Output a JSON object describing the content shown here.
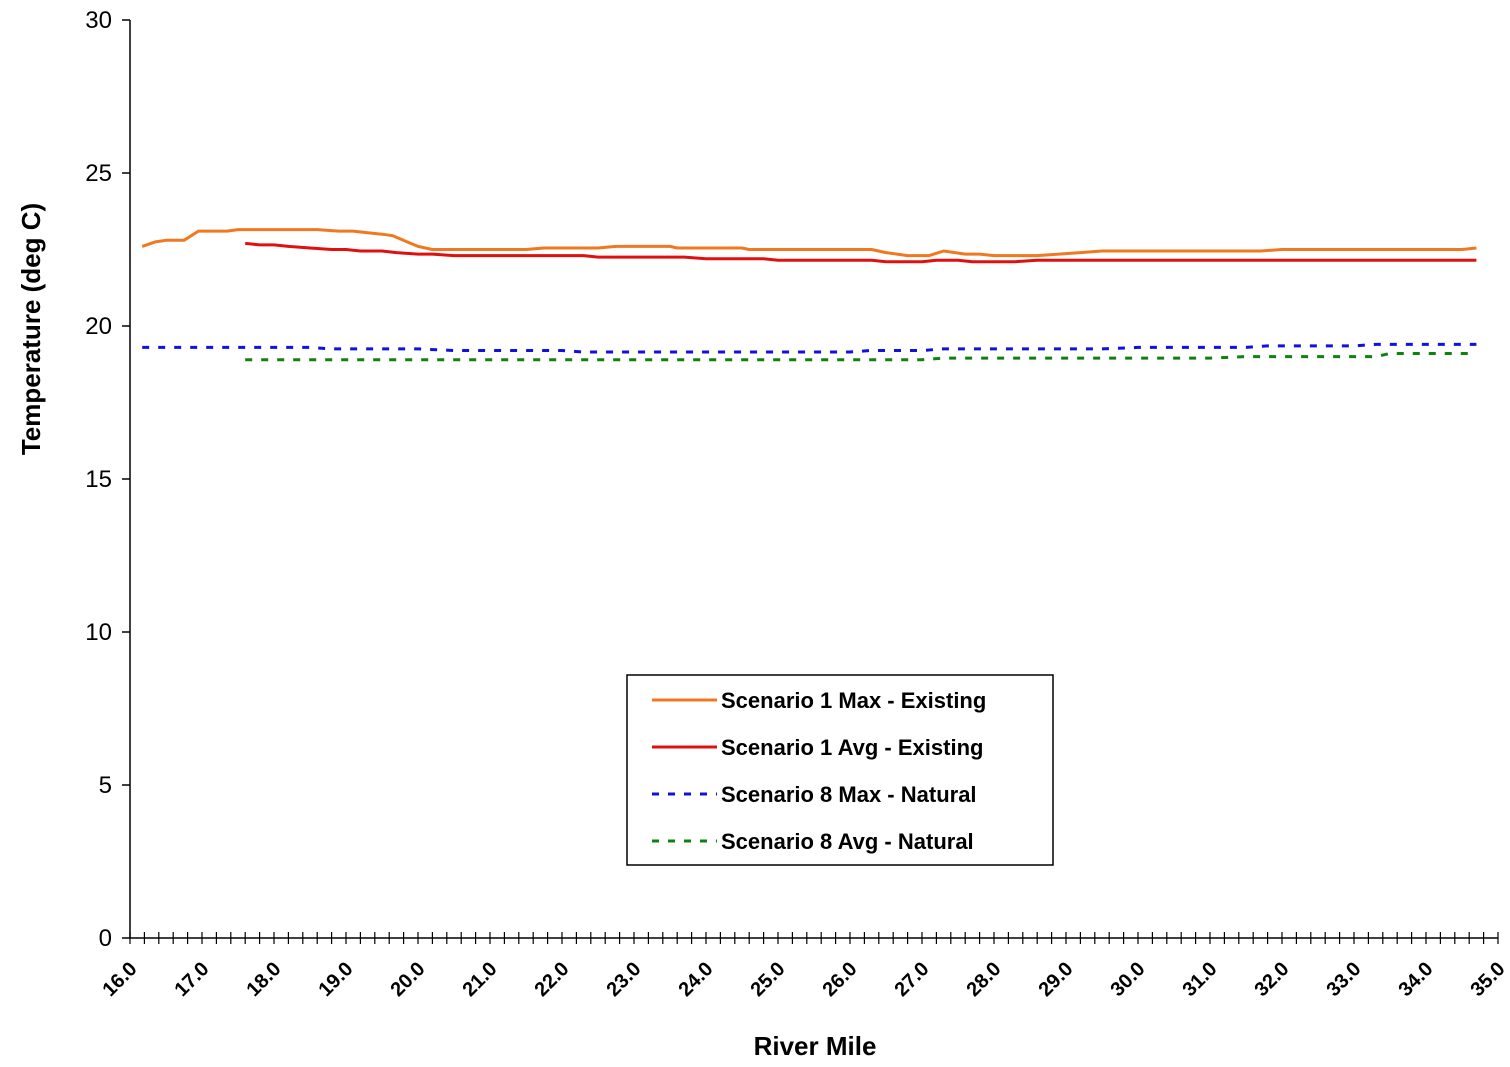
{
  "chart_data": {
    "type": "line",
    "title": "",
    "xlabel": "River Mile",
    "ylabel": "Temperature (deg C)",
    "xlim": [
      16.0,
      35.0
    ],
    "ylim": [
      0,
      30
    ],
    "yticks": [
      "0",
      "5",
      "10",
      "15",
      "20",
      "25",
      "30"
    ],
    "xticks": [
      "16.0",
      "17.0",
      "18.0",
      "19.0",
      "20.0",
      "21.0",
      "22.0",
      "23.0",
      "24.0",
      "25.0",
      "26.0",
      "27.0",
      "28.0",
      "29.0",
      "30.0",
      "31.0",
      "32.0",
      "33.0",
      "34.0",
      "35.0"
    ],
    "legend_position": "center-bottom",
    "grid": false,
    "series": [
      {
        "name": "Scenario 1 Max - Existing",
        "color": "#F07820",
        "dash": "solid",
        "x": [
          16.17,
          16.35,
          16.5,
          16.6,
          16.75,
          16.95,
          17.15,
          17.35,
          17.5,
          17.7,
          18.0,
          18.3,
          18.6,
          18.9,
          19.1,
          19.3,
          19.5,
          19.65,
          19.85,
          20.0,
          20.2,
          20.5,
          21.0,
          21.5,
          21.75,
          22.0,
          22.5,
          22.75,
          23.0,
          23.5,
          23.6,
          23.8,
          24.0,
          24.5,
          24.6,
          25.0,
          25.5,
          26.0,
          26.3,
          26.5,
          26.8,
          26.95,
          27.1,
          27.3,
          27.6,
          27.8,
          28.0,
          28.3,
          28.6,
          28.9,
          29.2,
          29.5,
          30.0,
          30.5,
          31.0,
          31.5,
          31.7,
          32.0,
          32.5,
          33.0,
          33.5,
          34.0,
          34.3,
          34.5,
          34.7
        ],
        "values": [
          22.6,
          22.75,
          22.8,
          22.8,
          22.8,
          23.1,
          23.1,
          23.1,
          23.15,
          23.15,
          23.15,
          23.15,
          23.15,
          23.1,
          23.1,
          23.05,
          23.0,
          22.95,
          22.75,
          22.6,
          22.5,
          22.5,
          22.5,
          22.5,
          22.55,
          22.55,
          22.55,
          22.6,
          22.6,
          22.6,
          22.55,
          22.55,
          22.55,
          22.55,
          22.5,
          22.5,
          22.5,
          22.5,
          22.5,
          22.4,
          22.3,
          22.3,
          22.3,
          22.45,
          22.35,
          22.35,
          22.3,
          22.3,
          22.3,
          22.35,
          22.4,
          22.45,
          22.45,
          22.45,
          22.45,
          22.45,
          22.45,
          22.5,
          22.5,
          22.5,
          22.5,
          22.5,
          22.5,
          22.5,
          22.55
        ]
      },
      {
        "name": "Scenario 1 Avg - Existing",
        "color": "#E01010",
        "dash": "solid",
        "x": [
          17.6,
          17.8,
          18.0,
          18.2,
          18.5,
          18.8,
          19.0,
          19.2,
          19.5,
          19.7,
          20.0,
          20.2,
          20.5,
          21.0,
          21.5,
          22.0,
          22.3,
          22.5,
          23.0,
          23.5,
          23.7,
          24.0,
          24.5,
          24.8,
          25.0,
          25.5,
          26.0,
          26.3,
          26.5,
          27.0,
          27.2,
          27.5,
          27.7,
          28.0,
          28.3,
          28.6,
          29.0,
          29.5,
          30.0,
          31.0,
          32.0,
          33.0,
          34.0,
          34.7
        ],
        "values": [
          22.7,
          22.65,
          22.65,
          22.6,
          22.55,
          22.5,
          22.5,
          22.45,
          22.45,
          22.4,
          22.35,
          22.35,
          22.3,
          22.3,
          22.3,
          22.3,
          22.3,
          22.25,
          22.25,
          22.25,
          22.25,
          22.2,
          22.2,
          22.2,
          22.15,
          22.15,
          22.15,
          22.15,
          22.1,
          22.1,
          22.15,
          22.15,
          22.1,
          22.1,
          22.1,
          22.15,
          22.15,
          22.15,
          22.15,
          22.15,
          22.15,
          22.15,
          22.15,
          22.15
        ]
      },
      {
        "name": "Scenario 8 Max - Natural",
        "color": "#1010E0",
        "dash": "dotted",
        "x": [
          16.17,
          16.5,
          17.0,
          17.5,
          18.0,
          18.5,
          18.8,
          19.0,
          20.0,
          20.5,
          21.0,
          22.0,
          22.3,
          23.0,
          23.5,
          24.0,
          25.0,
          26.0,
          26.3,
          26.5,
          27.0,
          27.3,
          27.6,
          28.0,
          29.0,
          29.5,
          30.0,
          30.5,
          31.0,
          31.5,
          31.8,
          32.0,
          32.5,
          33.0,
          33.3,
          33.5,
          34.0,
          34.5,
          34.7
        ],
        "values": [
          19.3,
          19.3,
          19.3,
          19.3,
          19.3,
          19.3,
          19.25,
          19.25,
          19.25,
          19.2,
          19.2,
          19.2,
          19.15,
          19.15,
          19.15,
          19.15,
          19.15,
          19.15,
          19.2,
          19.2,
          19.2,
          19.25,
          19.25,
          19.25,
          19.25,
          19.25,
          19.3,
          19.3,
          19.3,
          19.3,
          19.35,
          19.35,
          19.35,
          19.35,
          19.4,
          19.4,
          19.4,
          19.4,
          19.4
        ]
      },
      {
        "name": "Scenario 8 Avg - Natural",
        "color": "#108010",
        "dash": "dotted",
        "x": [
          17.6,
          18.0,
          19.0,
          20.0,
          21.0,
          22.0,
          23.0,
          24.0,
          25.0,
          26.0,
          27.0,
          27.3,
          27.6,
          28.0,
          29.0,
          30.0,
          31.0,
          31.5,
          32.0,
          33.0,
          33.3,
          33.5,
          34.0,
          34.5,
          34.7
        ],
        "values": [
          18.9,
          18.9,
          18.9,
          18.9,
          18.9,
          18.9,
          18.9,
          18.9,
          18.9,
          18.9,
          18.9,
          18.95,
          18.95,
          18.95,
          18.95,
          18.95,
          18.95,
          19.0,
          19.0,
          19.0,
          19.0,
          19.1,
          19.1,
          19.1,
          19.1
        ]
      }
    ]
  }
}
